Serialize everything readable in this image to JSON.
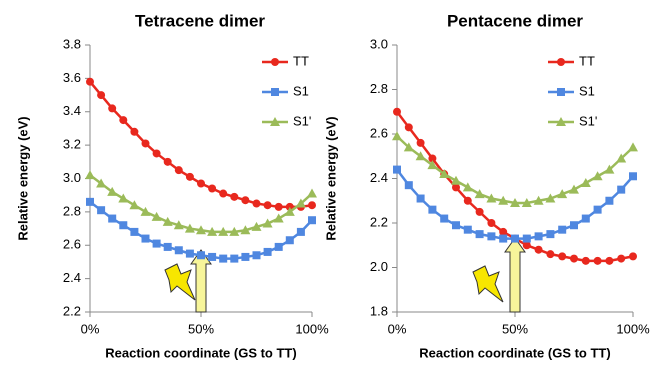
{
  "chart_data": [
    {
      "type": "line",
      "title": "Tetracene dimer",
      "xlabel": "Reaction coordinate (GS to TT)",
      "ylabel": "Relative energy (eV)",
      "x": [
        0,
        5,
        10,
        15,
        20,
        25,
        30,
        35,
        40,
        45,
        50,
        55,
        60,
        65,
        70,
        75,
        80,
        85,
        90,
        95,
        100
      ],
      "xlim": [
        0,
        100
      ],
      "xticks": [
        {
          "value": 0,
          "label": "0%"
        },
        {
          "value": 50,
          "label": "50%"
        },
        {
          "value": 100,
          "label": "100%"
        }
      ],
      "ylim": [
        2.2,
        3.8
      ],
      "yticks": [
        2.2,
        2.4,
        2.6,
        2.8,
        {
          "value": 3,
          "label": "3.0"
        },
        3.2,
        3.4,
        3.6,
        3.8
      ],
      "grid": false,
      "legend": "upper right",
      "series": [
        {
          "name": "TT",
          "color": "#e8281e",
          "marker": "circle",
          "values": [
            3.58,
            3.5,
            3.42,
            3.35,
            3.28,
            3.21,
            3.15,
            3.1,
            3.05,
            3.01,
            2.97,
            2.94,
            2.91,
            2.89,
            2.87,
            2.85,
            2.84,
            2.83,
            2.83,
            2.83,
            2.84
          ]
        },
        {
          "name": "S1",
          "color": "#4f87e0",
          "marker": "square",
          "values": [
            2.86,
            2.81,
            2.76,
            2.72,
            2.68,
            2.64,
            2.61,
            2.59,
            2.57,
            2.55,
            2.54,
            2.53,
            2.52,
            2.52,
            2.53,
            2.54,
            2.56,
            2.59,
            2.63,
            2.68,
            2.75
          ]
        },
        {
          "name": "S1'",
          "color": "#9bbb59",
          "marker": "triangle",
          "values": [
            3.02,
            2.97,
            2.92,
            2.88,
            2.84,
            2.8,
            2.77,
            2.74,
            2.72,
            2.7,
            2.69,
            2.68,
            2.68,
            2.68,
            2.69,
            2.71,
            2.73,
            2.76,
            2.8,
            2.85,
            2.91
          ]
        }
      ]
    },
    {
      "type": "line",
      "title": "Pentacene dimer",
      "xlabel": "Reaction coordinate (GS to TT)",
      "ylabel": "Relative energy (eV)",
      "x": [
        0,
        5,
        10,
        15,
        20,
        25,
        30,
        35,
        40,
        45,
        50,
        55,
        60,
        65,
        70,
        75,
        80,
        85,
        90,
        95,
        100
      ],
      "xlim": [
        0,
        100
      ],
      "xticks": [
        {
          "value": 0,
          "label": "0%"
        },
        {
          "value": 50,
          "label": "50%"
        },
        {
          "value": 100,
          "label": "100%"
        }
      ],
      "ylim": [
        1.8,
        3
      ],
      "yticks": [
        1.8,
        {
          "value": 2,
          "label": "2.0"
        },
        2.2,
        2.4,
        2.6,
        2.8,
        {
          "value": 3,
          "label": "3.0"
        }
      ],
      "grid": false,
      "legend": "upper right",
      "series": [
        {
          "name": "TT",
          "color": "#e8281e",
          "marker": "circle",
          "values": [
            2.7,
            2.63,
            2.56,
            2.49,
            2.42,
            2.36,
            2.3,
            2.25,
            2.2,
            2.16,
            2.13,
            2.1,
            2.08,
            2.06,
            2.05,
            2.04,
            2.03,
            2.03,
            2.03,
            2.04,
            2.05
          ]
        },
        {
          "name": "S1",
          "color": "#4f87e0",
          "marker": "square",
          "values": [
            2.44,
            2.37,
            2.31,
            2.26,
            2.22,
            2.19,
            2.17,
            2.15,
            2.14,
            2.13,
            2.13,
            2.13,
            2.14,
            2.15,
            2.17,
            2.19,
            2.22,
            2.26,
            2.3,
            2.35,
            2.41
          ]
        },
        {
          "name": "S1'",
          "color": "#9bbb59",
          "marker": "triangle",
          "values": [
            2.59,
            2.54,
            2.5,
            2.46,
            2.42,
            2.39,
            2.36,
            2.33,
            2.31,
            2.3,
            2.29,
            2.29,
            2.3,
            2.31,
            2.33,
            2.35,
            2.38,
            2.41,
            2.44,
            2.49,
            2.54
          ]
        }
      ]
    }
  ]
}
